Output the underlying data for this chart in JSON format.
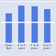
{
  "categories": [
    "Under\n4yrs",
    "4 to 5\nyears",
    "5 to 6\nyears",
    "6 to 7\nyears"
  ],
  "values": [
    72,
    90,
    88,
    82
  ],
  "bar_color": "#4F7BE0",
  "background_color": "#DDE3F0",
  "plot_bg_color": "#DDE3F0",
  "grid_color": "#FFFFFF",
  "ylim": [
    0,
    100
  ],
  "bar_width": 0.5,
  "tick_fontsize": 2.8,
  "grid_linewidth": 1.2,
  "figsize": [
    0.8,
    0.8
  ],
  "dpi": 100
}
